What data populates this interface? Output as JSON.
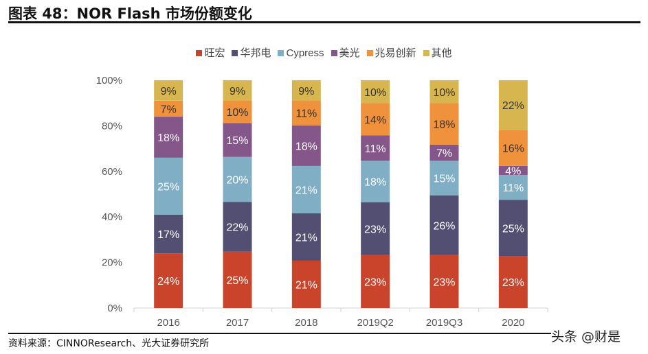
{
  "title": "图表 48：NOR Flash  市场份额变化",
  "source": "资料来源：CINNOResearch、光大证券研究所",
  "watermark": "头条 @财是",
  "chart_data": {
    "type": "bar",
    "stacked": "percent",
    "categories": [
      "2016",
      "2017",
      "2018",
      "2019Q2",
      "2019Q3",
      "2020"
    ],
    "series": [
      {
        "name": "旺宏",
        "color": "#C9442B",
        "label_color": "#ffffff",
        "values": [
          24,
          25,
          21,
          23,
          23,
          23
        ]
      },
      {
        "name": "华邦电",
        "color": "#534F72",
        "label_color": "#ffffff",
        "values": [
          17,
          22,
          21,
          23,
          26,
          25
        ]
      },
      {
        "name": "Cypress",
        "color": "#80AFC5",
        "label_color": "#ffffff",
        "values": [
          25,
          20,
          21,
          18,
          15,
          11
        ]
      },
      {
        "name": "美光",
        "color": "#85568A",
        "label_color": "#ffffff",
        "values": [
          18,
          15,
          18,
          11,
          7,
          4
        ]
      },
      {
        "name": "兆易创新",
        "color": "#F0913B",
        "label_color": "#333333",
        "values": [
          7,
          10,
          11,
          14,
          18,
          16
        ]
      },
      {
        "name": "其他",
        "color": "#D8B64F",
        "label_color": "#333333",
        "values": [
          9,
          9,
          9,
          10,
          10,
          22
        ]
      }
    ],
    "yticks": [
      "0%",
      "20%",
      "40%",
      "60%",
      "80%",
      "100%"
    ],
    "ylim": [
      0,
      100
    ],
    "legend": "top",
    "grid": false
  }
}
